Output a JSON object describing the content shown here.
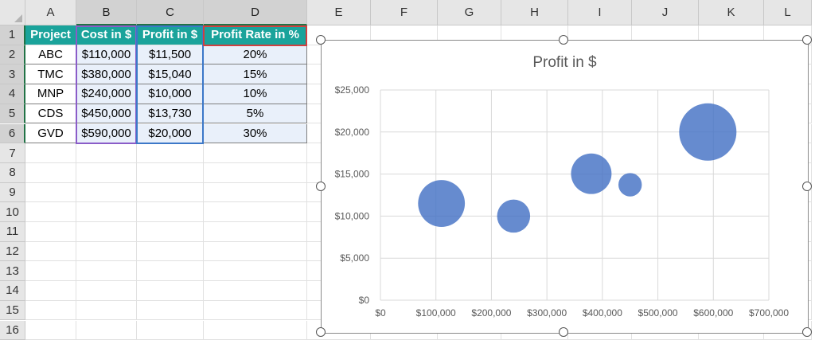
{
  "columns": [
    "A",
    "B",
    "C",
    "D",
    "E",
    "F",
    "G",
    "H",
    "I",
    "J",
    "K",
    "L"
  ],
  "selected_columns": [
    "B",
    "C",
    "D"
  ],
  "rows": [
    "1",
    "2",
    "3",
    "4",
    "5",
    "6",
    "7",
    "8",
    "9",
    "10",
    "11",
    "12",
    "13",
    "14",
    "15",
    "16"
  ],
  "selected_rows": [
    "1",
    "2",
    "3",
    "4",
    "5",
    "6"
  ],
  "table": {
    "headers": [
      "Project",
      "Cost in $",
      "Profit in $",
      "Profit Rate in %"
    ],
    "rows": [
      [
        "ABC",
        "$110,000",
        "$11,500",
        "20%"
      ],
      [
        "TMC",
        "$380,000",
        "$15,040",
        "15%"
      ],
      [
        "MNP",
        "$240,000",
        "$10,000",
        "10%"
      ],
      [
        "CDS",
        "$450,000",
        "$13,730",
        "5%"
      ],
      [
        "GVD",
        "$590,000",
        "$20,000",
        "30%"
      ]
    ]
  },
  "chart_data": {
    "type": "scatter",
    "subtype": "bubble",
    "title": "Profit in $",
    "xlabel": "",
    "ylabel": "",
    "xlim": [
      0,
      700000
    ],
    "ylim": [
      0,
      25000
    ],
    "x_ticks": [
      "$0",
      "$100,000",
      "$200,000",
      "$300,000",
      "$400,000",
      "$500,000",
      "$600,000",
      "$700,000"
    ],
    "y_ticks": [
      "$0",
      "$5,000",
      "$10,000",
      "$15,000",
      "$20,000",
      "$25,000"
    ],
    "grid": true,
    "bubble_color": "#4472c4",
    "series": [
      {
        "x": [
          110000,
          380000,
          240000,
          450000,
          590000
        ],
        "y": [
          11500,
          15040,
          10000,
          13730,
          20000
        ],
        "size": [
          20,
          15,
          10,
          5,
          30
        ]
      }
    ]
  }
}
